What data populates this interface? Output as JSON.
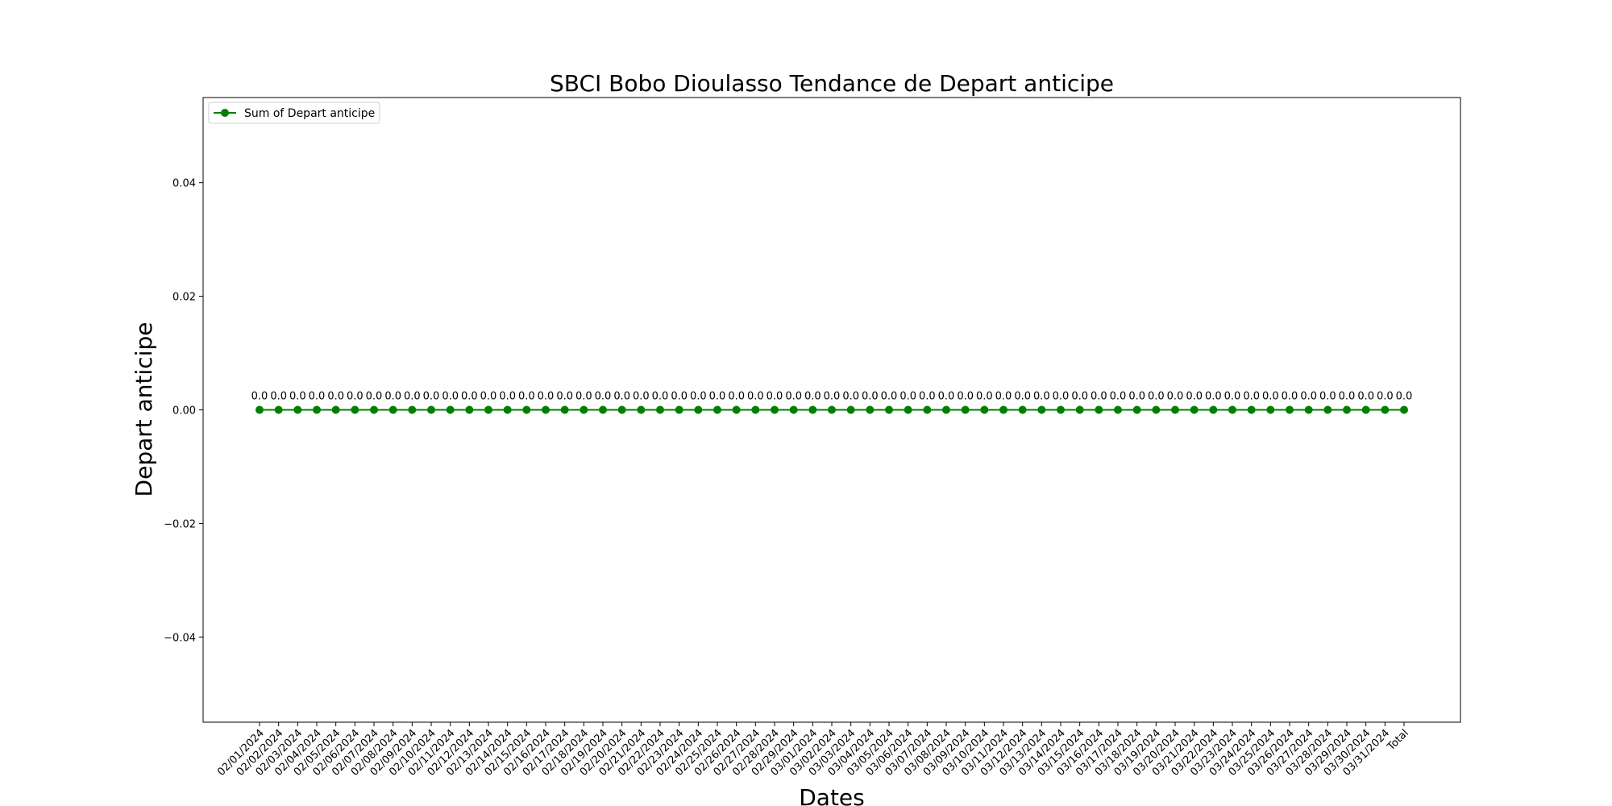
{
  "chart_data": {
    "type": "line",
    "title": "SBCI Bobo Dioulasso Tendance de Depart anticipe",
    "xlabel": "Dates",
    "ylabel": "Depart anticipe",
    "ylim": [
      -0.055,
      0.055
    ],
    "yticks": [
      -0.04,
      -0.02,
      0.0,
      0.02,
      0.04
    ],
    "ytick_labels": [
      "−0.04",
      "−0.02",
      "0.00",
      "0.02",
      "0.04"
    ],
    "legend_position": "top-left",
    "grid": false,
    "series_color": "#008000",
    "categories": [
      "02/01/2024",
      "02/02/2024",
      "02/03/2024",
      "02/04/2024",
      "02/05/2024",
      "02/06/2024",
      "02/07/2024",
      "02/08/2024",
      "02/09/2024",
      "02/10/2024",
      "02/11/2024",
      "02/12/2024",
      "02/13/2024",
      "02/14/2024",
      "02/15/2024",
      "02/16/2024",
      "02/17/2024",
      "02/18/2024",
      "02/19/2024",
      "02/20/2024",
      "02/21/2024",
      "02/22/2024",
      "02/23/2024",
      "02/24/2024",
      "02/25/2024",
      "02/26/2024",
      "02/27/2024",
      "02/28/2024",
      "02/29/2024",
      "03/01/2024",
      "03/02/2024",
      "03/03/2024",
      "03/04/2024",
      "03/05/2024",
      "03/06/2024",
      "03/07/2024",
      "03/08/2024",
      "03/09/2024",
      "03/10/2024",
      "03/11/2024",
      "03/12/2024",
      "03/13/2024",
      "03/14/2024",
      "03/15/2024",
      "03/16/2024",
      "03/17/2024",
      "03/18/2024",
      "03/19/2024",
      "03/20/2024",
      "03/21/2024",
      "03/22/2024",
      "03/23/2024",
      "03/24/2024",
      "03/25/2024",
      "03/26/2024",
      "03/27/2024",
      "03/28/2024",
      "03/29/2024",
      "03/30/2024",
      "03/31/2024",
      "Total"
    ],
    "series": [
      {
        "name": "Sum of Depart anticipe",
        "values": [
          0,
          0,
          0,
          0,
          0,
          0,
          0,
          0,
          0,
          0,
          0,
          0,
          0,
          0,
          0,
          0,
          0,
          0,
          0,
          0,
          0,
          0,
          0,
          0,
          0,
          0,
          0,
          0,
          0,
          0,
          0,
          0,
          0,
          0,
          0,
          0,
          0,
          0,
          0,
          0,
          0,
          0,
          0,
          0,
          0,
          0,
          0,
          0,
          0,
          0,
          0,
          0,
          0,
          0,
          0,
          0,
          0,
          0,
          0,
          0,
          0
        ],
        "data_labels": [
          "0.0",
          "0.0",
          "0.0",
          "0.0",
          "0.0",
          "0.0",
          "0.0",
          "0.0",
          "0.0",
          "0.0",
          "0.0",
          "0.0",
          "0.0",
          "0.0",
          "0.0",
          "0.0",
          "0.0",
          "0.0",
          "0.0",
          "0.0",
          "0.0",
          "0.0",
          "0.0",
          "0.0",
          "0.0",
          "0.0",
          "0.0",
          "0.0",
          "0.0",
          "0.0",
          "0.0",
          "0.0",
          "0.0",
          "0.0",
          "0.0",
          "0.0",
          "0.0",
          "0.0",
          "0.0",
          "0.0",
          "0.0",
          "0.0",
          "0.0",
          "0.0",
          "0.0",
          "0.0",
          "0.0",
          "0.0",
          "0.0",
          "0.0",
          "0.0",
          "0.0",
          "0.0",
          "0.0",
          "0.0",
          "0.0",
          "0.0",
          "0.0",
          "0.0",
          "0.0",
          "0.0"
        ]
      }
    ]
  }
}
